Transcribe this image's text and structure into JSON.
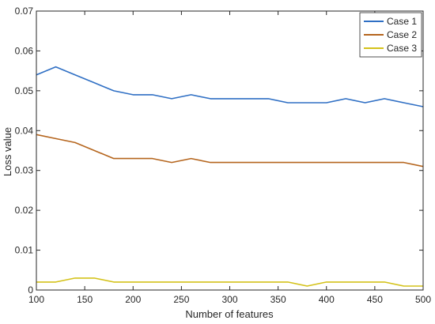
{
  "chart_data": {
    "type": "line",
    "xlabel": "Number of features",
    "ylabel": "Loss value",
    "xlim": [
      100,
      500
    ],
    "ylim": [
      0,
      0.07
    ],
    "xticks": [
      100,
      150,
      200,
      250,
      300,
      350,
      400,
      450,
      500
    ],
    "yticks": [
      0,
      0.01,
      0.02,
      0.03,
      0.04,
      0.05,
      0.06,
      0.07
    ],
    "grid": false,
    "legend_position": "top-right",
    "x": [
      100,
      120,
      140,
      160,
      180,
      200,
      220,
      240,
      260,
      280,
      300,
      320,
      340,
      360,
      380,
      400,
      420,
      440,
      460,
      480,
      500
    ],
    "series": [
      {
        "name": "Case 1",
        "color": "#2f6fc4",
        "values": [
          0.054,
          0.056,
          0.054,
          0.052,
          0.05,
          0.049,
          0.049,
          0.048,
          0.049,
          0.048,
          0.048,
          0.048,
          0.048,
          0.047,
          0.047,
          0.047,
          0.048,
          0.047,
          0.048,
          0.047,
          0.046
        ]
      },
      {
        "name": "Case 2",
        "color": "#b5651d",
        "values": [
          0.039,
          0.038,
          0.037,
          0.035,
          0.033,
          0.033,
          0.033,
          0.032,
          0.033,
          0.032,
          0.032,
          0.032,
          0.032,
          0.032,
          0.032,
          0.032,
          0.032,
          0.032,
          0.032,
          0.032,
          0.031
        ]
      },
      {
        "name": "Case 3",
        "color": "#d4c21a",
        "values": [
          0.002,
          0.002,
          0.003,
          0.003,
          0.002,
          0.002,
          0.002,
          0.002,
          0.002,
          0.002,
          0.002,
          0.002,
          0.002,
          0.002,
          0.001,
          0.002,
          0.002,
          0.002,
          0.002,
          0.001,
          0.001
        ]
      }
    ]
  }
}
